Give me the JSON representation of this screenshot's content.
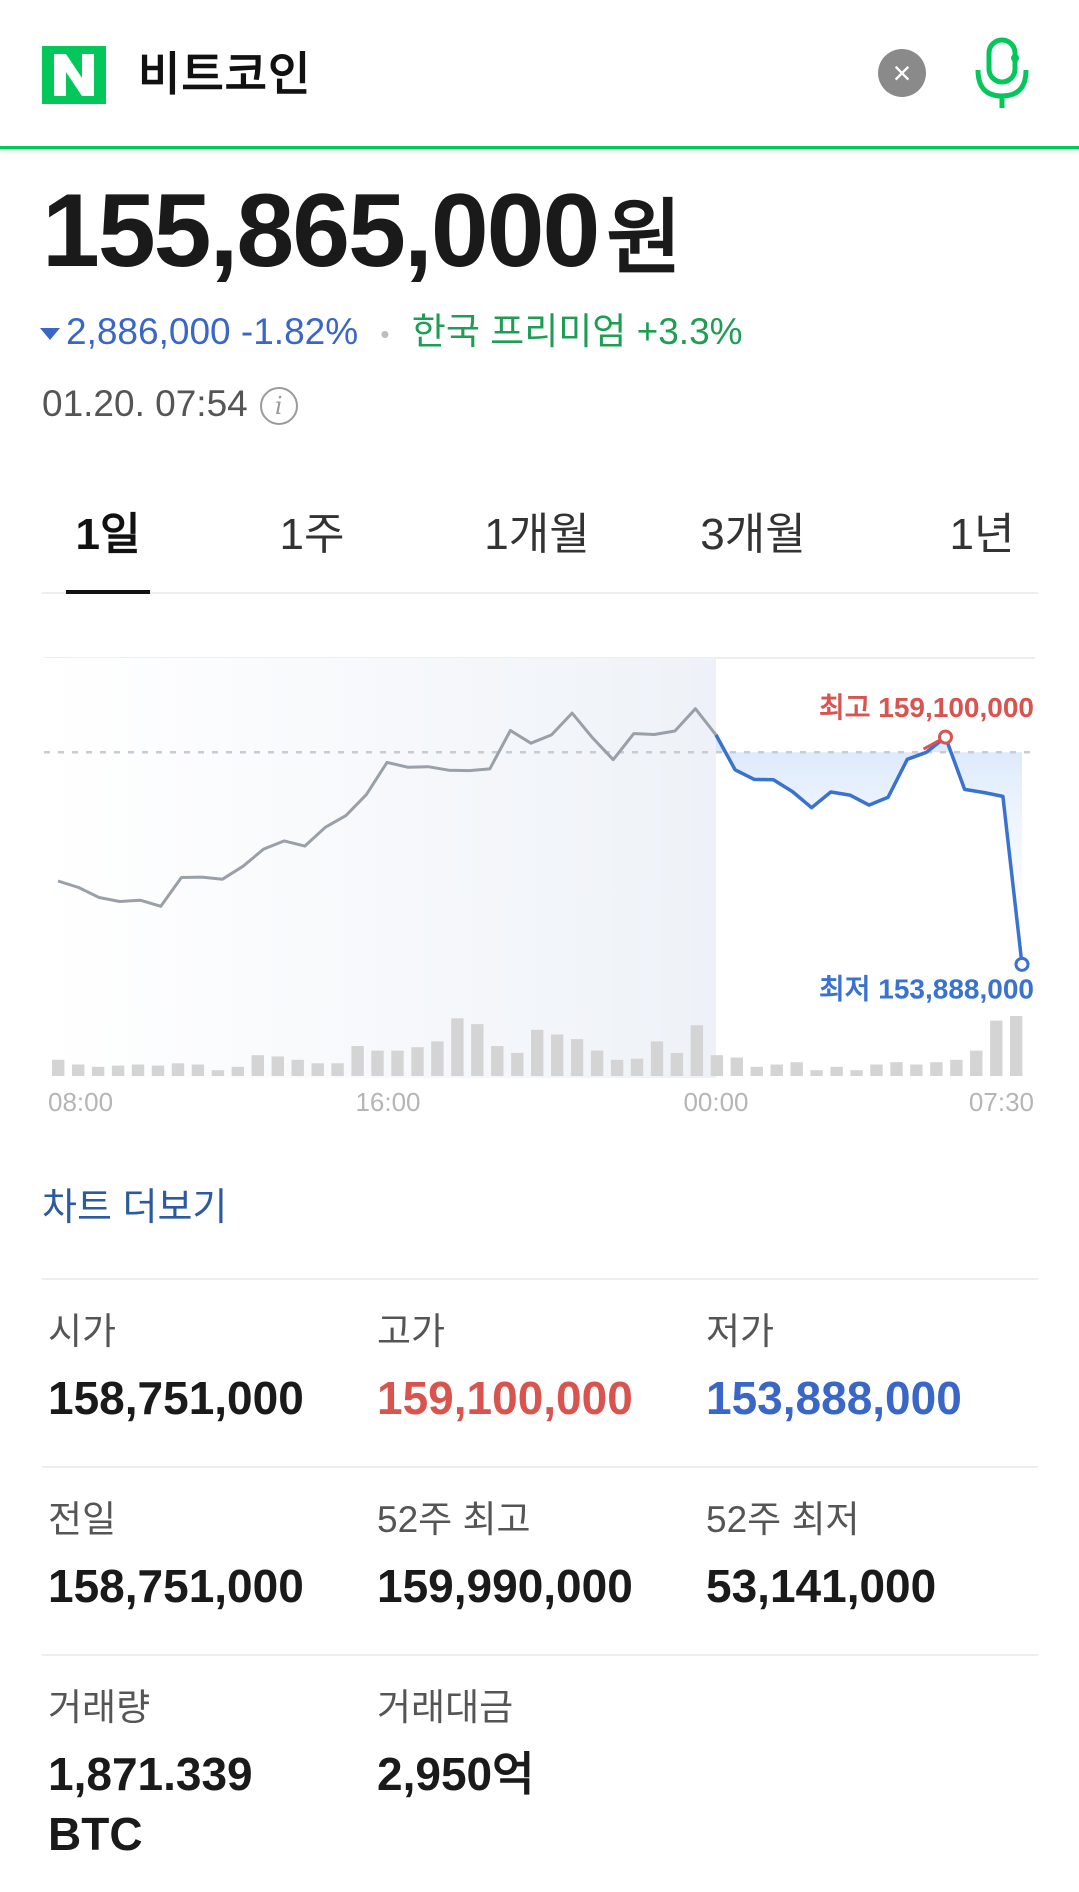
{
  "header": {
    "logo_text": "N",
    "query": "비트코인",
    "clear_label": "×",
    "colors": {
      "brand": "#03c75a",
      "clear_bg": "#8a8a8a"
    }
  },
  "price": {
    "value": "155,865,000",
    "unit": "원",
    "change_amount": "2,886,000",
    "change_percent": "-1.82%",
    "premium_label": "한국 프리미엄",
    "premium_value": "+3.3%",
    "timestamp": "01.20. 07:54",
    "colors": {
      "down": "#3a66c7",
      "premium": "#1f9d55"
    }
  },
  "tabs": [
    {
      "label": "1일",
      "active": true
    },
    {
      "label": "1주",
      "active": false
    },
    {
      "label": "1개월",
      "active": false
    },
    {
      "label": "3개월",
      "active": false
    },
    {
      "label": "1년",
      "active": false
    }
  ],
  "chart_data": {
    "type": "line",
    "x_ticks": [
      "08:00",
      "16:00",
      "00:00",
      "07:30"
    ],
    "baseline_label": "",
    "high_label": "최고 159,100,000",
    "low_label": "최저 153,888,000",
    "high": 159100000,
    "low": 153888000,
    "previous_close": 158751000,
    "ylim": [
      153300000,
      159950000
    ],
    "series_before_midnight": [
      155800000,
      155650000,
      155420000,
      155330000,
      155360000,
      155220000,
      155880000,
      155890000,
      155840000,
      156140000,
      156530000,
      156720000,
      156600000,
      157030000,
      157300000,
      157780000,
      158520000,
      158410000,
      158420000,
      158340000,
      158330000,
      158370000,
      159250000,
      158960000,
      159150000,
      159650000,
      159080000,
      158580000,
      159180000,
      159160000,
      159240000,
      159750000,
      159150000
    ],
    "series_after_midnight": [
      158350000,
      158130000,
      158120000,
      157850000,
      157480000,
      157840000,
      157770000,
      157540000,
      157720000,
      158590000,
      158750000,
      159100000,
      157900000,
      157830000,
      157740000,
      153888000
    ],
    "volume": [
      14,
      10,
      8,
      9,
      10,
      9,
      11,
      10,
      5,
      8,
      18,
      17,
      14,
      11,
      11,
      26,
      22,
      22,
      25,
      30,
      50,
      45,
      26,
      20,
      40,
      36,
      32,
      22,
      14,
      15,
      30,
      20,
      44,
      18,
      16,
      8,
      10,
      12,
      5,
      8,
      5,
      10,
      12,
      10,
      12,
      14,
      22,
      48,
      52
    ],
    "colors": {
      "past_line": "#9aa0a8",
      "today_line": "#3a72d0",
      "high": "#d9534f",
      "low": "#3a72d0",
      "volume": "#d4d4d4"
    }
  },
  "more_link": "차트 더보기",
  "stats": [
    {
      "label": "시가",
      "value": "158,751,000",
      "tone": "normal"
    },
    {
      "label": "고가",
      "value": "159,100,000",
      "tone": "red"
    },
    {
      "label": "저가",
      "value": "153,888,000",
      "tone": "blue"
    },
    {
      "label": "전일",
      "value": "158,751,000",
      "tone": "normal"
    },
    {
      "label": "52주 최고",
      "value": "159,990,000",
      "tone": "normal"
    },
    {
      "label": "52주 최저",
      "value": "53,141,000",
      "tone": "normal"
    },
    {
      "label": "거래량",
      "value": "1,871.339 BTC",
      "tone": "normal"
    },
    {
      "label": "거래대금",
      "value": "2,950억",
      "tone": "normal"
    }
  ]
}
